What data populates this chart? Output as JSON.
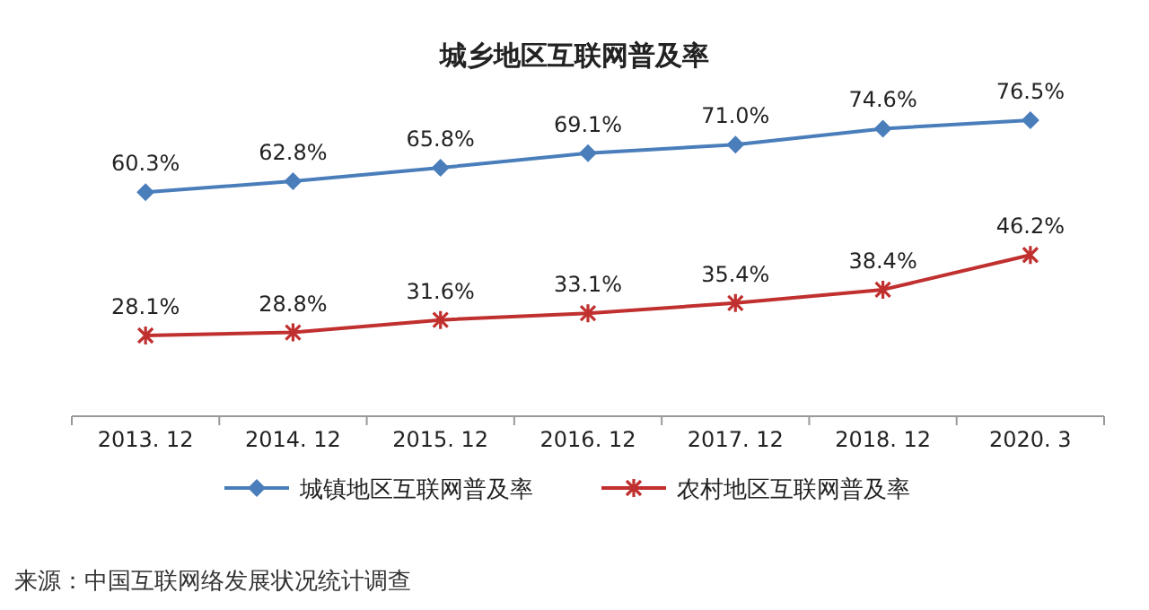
{
  "chart_data": {
    "type": "line",
    "title": "城乡地区互联网普及率",
    "categories": [
      "2013. 12",
      "2014. 12",
      "2015. 12",
      "2016. 12",
      "2017. 12",
      "2018. 12",
      "2020. 3"
    ],
    "series": [
      {
        "name": "城镇地区互联网普及率",
        "color": "#4a7ebb",
        "marker": "diamond",
        "values": [
          60.3,
          62.8,
          65.8,
          69.1,
          71.0,
          74.6,
          76.5
        ],
        "value_labels": [
          "60.3%",
          "62.8%",
          "65.8%",
          "69.1%",
          "71.0%",
          "74.6%",
          "76.5%"
        ]
      },
      {
        "name": "农村地区互联网普及率",
        "color": "#c0302f",
        "marker": "cross",
        "values": [
          28.1,
          28.8,
          31.6,
          33.1,
          35.4,
          38.4,
          46.2
        ],
        "value_labels": [
          "28.1%",
          "28.8%",
          "31.6%",
          "33.1%",
          "35.4%",
          "38.4%",
          "46.2%"
        ]
      }
    ],
    "tick_labels": "x",
    "legend": "bottom",
    "annotations": [
      "来源：中国互联网络发展状况统计调查"
    ]
  }
}
